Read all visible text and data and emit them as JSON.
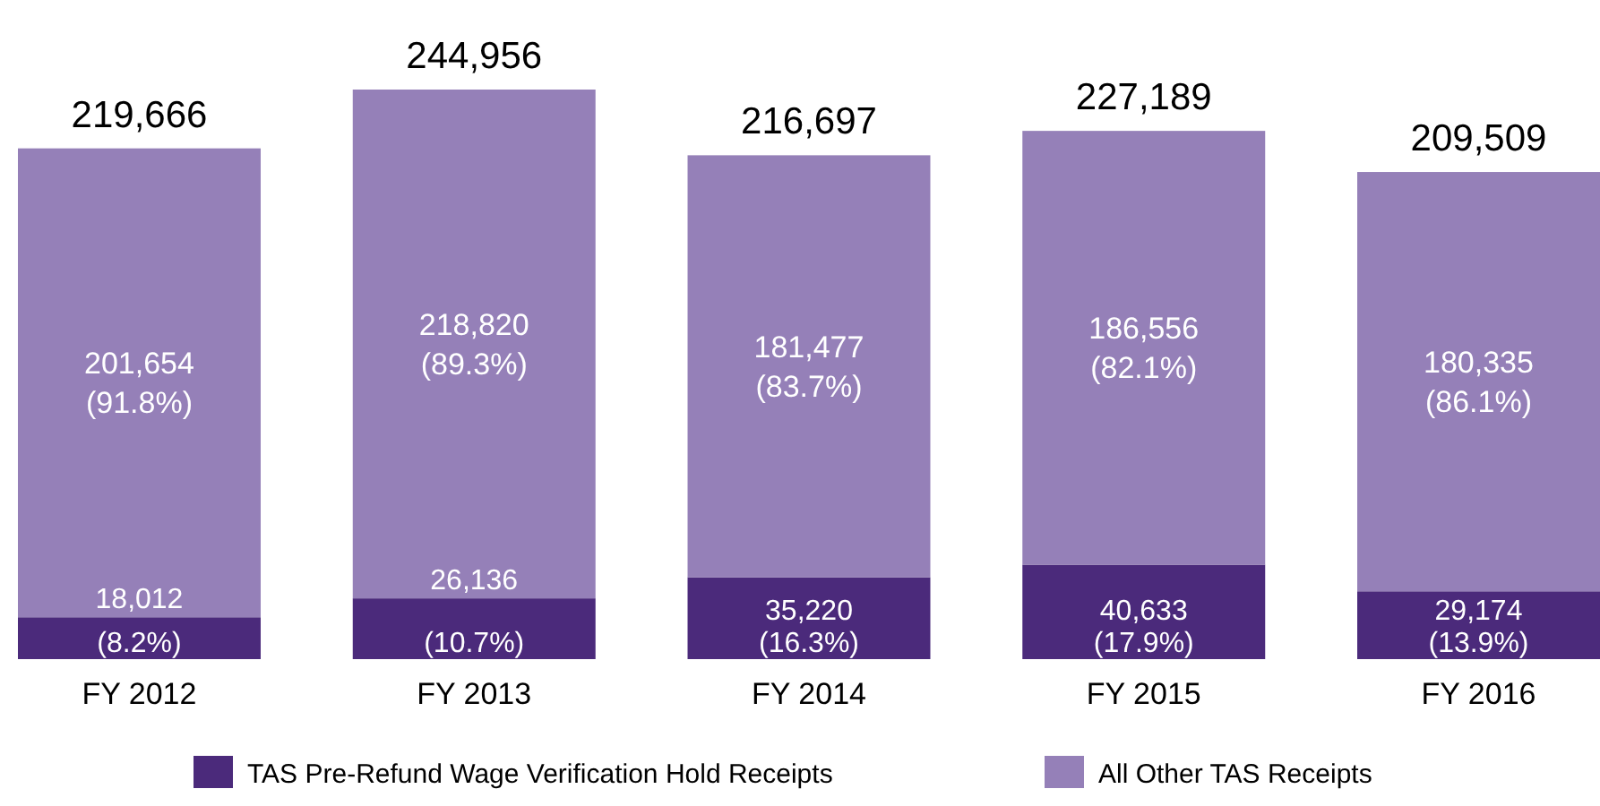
{
  "chart_data": {
    "type": "bar",
    "stacked": true,
    "categories": [
      "FY 2012",
      "FY 2013",
      "FY 2014",
      "FY 2015",
      "FY 2016"
    ],
    "series": [
      {
        "name": "TAS Pre-Refund Wage Verification Hold Receipts",
        "color": "#4b2a7b",
        "values": [
          18012,
          26136,
          35220,
          40633,
          29174
        ],
        "value_labels": [
          "18,012\n(8.2%)",
          "26,136\n(10.7%)",
          "35,220\n(16.3%)",
          "40,633\n(17.9%)",
          "29,174\n(13.9%)"
        ]
      },
      {
        "name": "All Other TAS Receipts",
        "color": "#9580b8",
        "values": [
          201654,
          218820,
          181477,
          186556,
          180335
        ],
        "value_labels": [
          "201,654\n(91.8%)",
          "218,820\n(89.3%)",
          "181,477\n(83.7%)",
          "186,556\n(82.1%)",
          "180,335\n(86.1%)"
        ]
      }
    ],
    "totals": [
      "219,666",
      "244,956",
      "216,697",
      "227,189",
      "209,509"
    ],
    "legend": "bottom"
  }
}
